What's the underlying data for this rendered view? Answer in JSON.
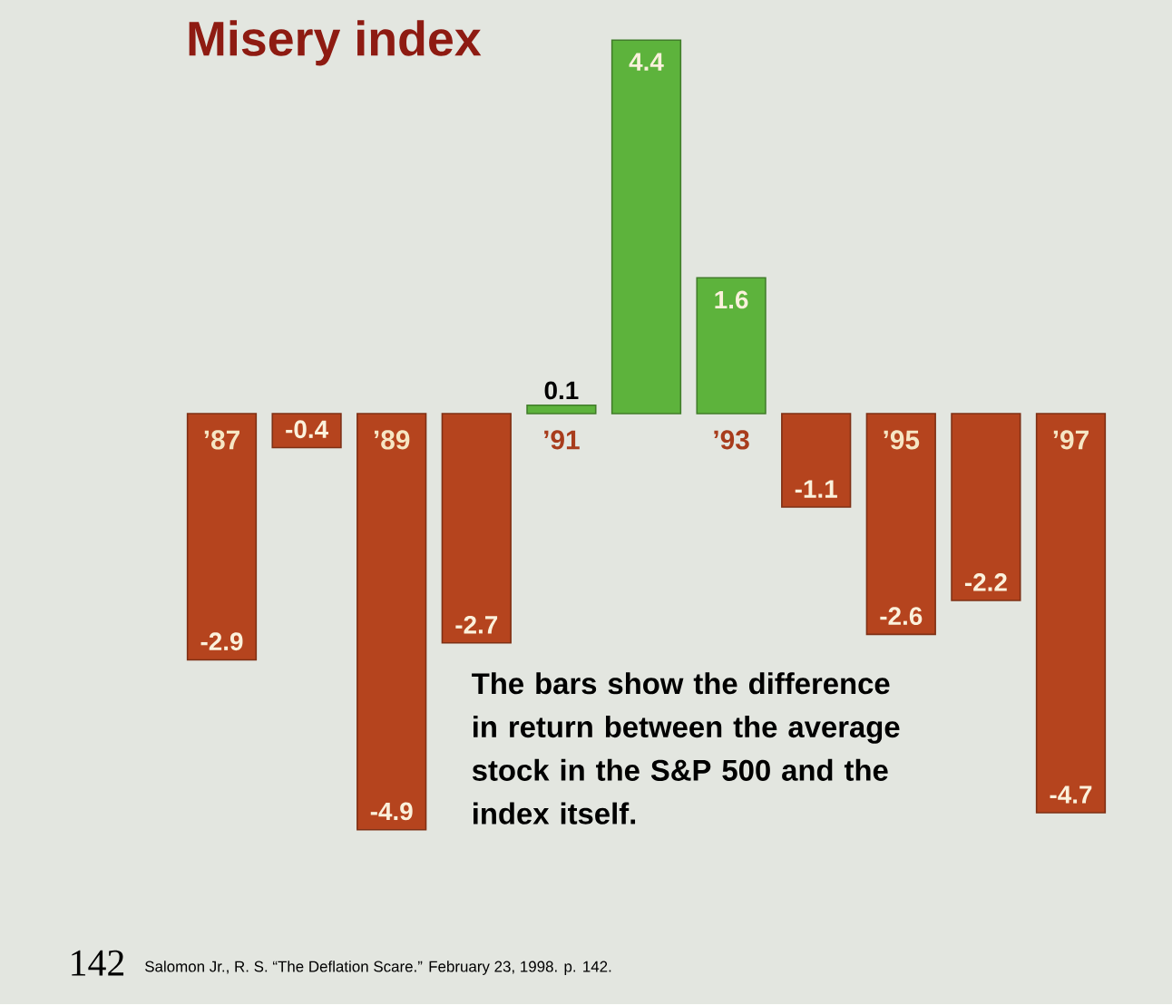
{
  "chart_data": {
    "type": "bar",
    "title": "Misery index",
    "categories": [
      "’87",
      null,
      "’89",
      null,
      "’91",
      null,
      "’93",
      null,
      "’95",
      null,
      "’97"
    ],
    "values": [
      -2.9,
      -0.4,
      -4.9,
      -2.7,
      0.1,
      4.4,
      1.6,
      -1.1,
      -2.6,
      -2.2,
      -4.7
    ],
    "colors": [
      "#b5441e",
      "#b5441e",
      "#b5441e",
      "#b5441e",
      "#5db33c",
      "#5db33c",
      "#5db33c",
      "#b5441e",
      "#b5441e",
      "#b5441e",
      "#b5441e"
    ],
    "data_labels": true,
    "annotations": [
      "The bars show the difference in return between the average stock in the S&P 500 and the index itself.",
      "142",
      "Salomon Jr., R. S. “The Deflation Scare.” February 23, 1998. p. 142."
    ]
  }
}
